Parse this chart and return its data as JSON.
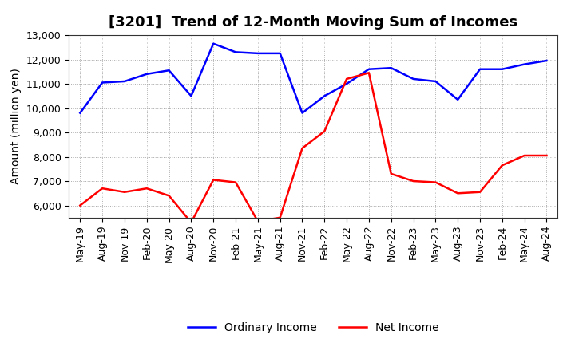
{
  "title": "[3201]  Trend of 12-Month Moving Sum of Incomes",
  "ylabel": "Amount (million yen)",
  "x_labels": [
    "May-19",
    "Aug-19",
    "Nov-19",
    "Feb-20",
    "May-20",
    "Aug-20",
    "Nov-20",
    "Feb-21",
    "May-21",
    "Aug-21",
    "Nov-21",
    "Feb-22",
    "May-22",
    "Aug-22",
    "Nov-22",
    "Feb-23",
    "May-23",
    "Aug-23",
    "Nov-23",
    "Feb-24",
    "May-24",
    "Aug-24"
  ],
  "ordinary_income": [
    9800,
    11050,
    11100,
    11400,
    11550,
    10500,
    12650,
    12300,
    12250,
    12250,
    9800,
    10500,
    11000,
    11600,
    11650,
    11200,
    11100,
    10350,
    11600,
    11600,
    11800,
    11950
  ],
  "net_income": [
    6000,
    6700,
    6550,
    6700,
    6400,
    5300,
    7050,
    6950,
    5350,
    5500,
    8350,
    9050,
    11200,
    11450,
    7300,
    7000,
    6950,
    6500,
    6550,
    7650,
    8050,
    8050
  ],
  "ordinary_color": "#0000ff",
  "net_color": "#ff0000",
  "ylim_min": 5500,
  "ylim_max": 13000,
  "background_color": "#ffffff",
  "grid_color": "#aaaaaa",
  "title_fontsize": 13,
  "label_fontsize": 10,
  "tick_fontsize": 9,
  "legend_fontsize": 10
}
